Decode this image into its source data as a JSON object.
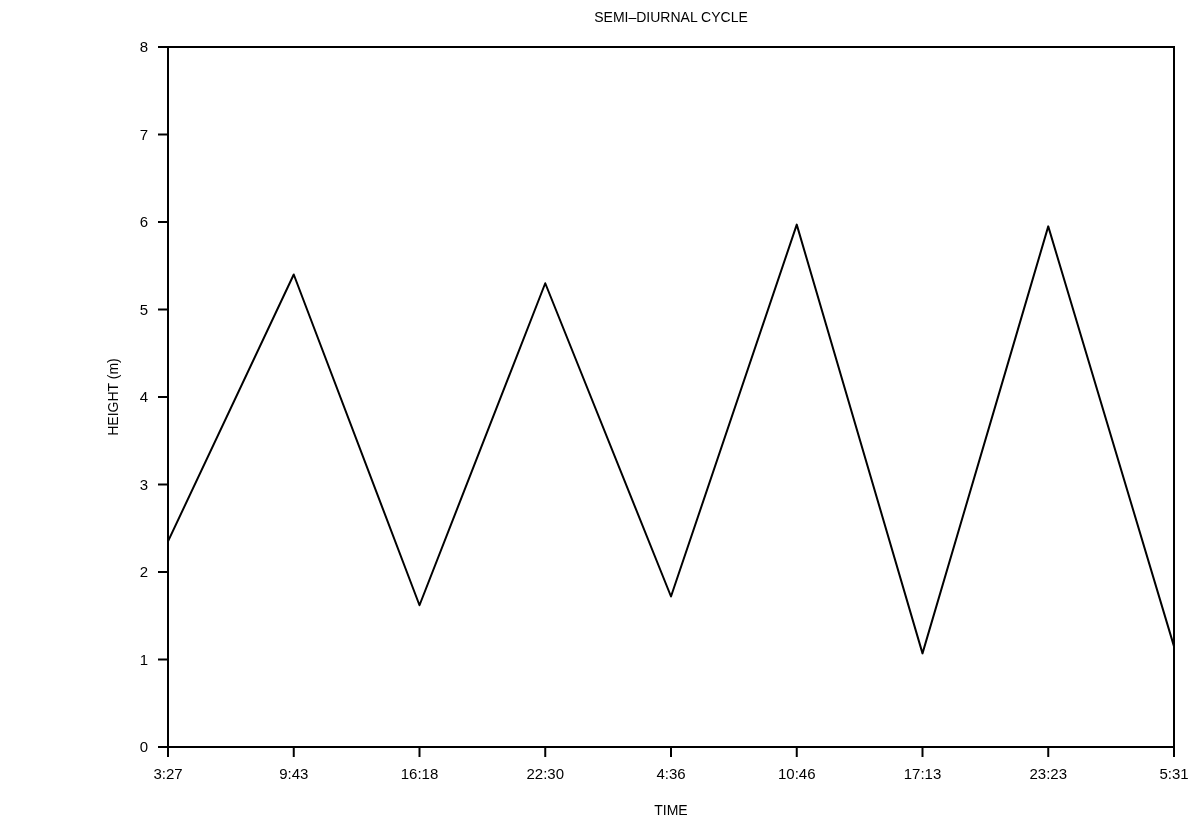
{
  "chart_data": {
    "type": "line",
    "title": "SEMI–DIURNAL CYCLE",
    "xlabel": "TIME",
    "ylabel": "HEIGHT (m)",
    "categories": [
      "3:27",
      "9:43",
      "16:18",
      "22:30",
      "4:36",
      "10:46",
      "17:13",
      "23:23",
      "5:31"
    ],
    "series": [
      {
        "color": "#000000",
        "values": [
          2.35,
          5.4,
          1.62,
          5.3,
          1.72,
          5.97,
          1.07,
          5.95,
          1.15
        ]
      }
    ],
    "ylim": [
      0,
      8
    ],
    "yticks": [
      0,
      1,
      2,
      3,
      4,
      5,
      6,
      7,
      8
    ],
    "marker": "none",
    "line_style": "solid"
  }
}
